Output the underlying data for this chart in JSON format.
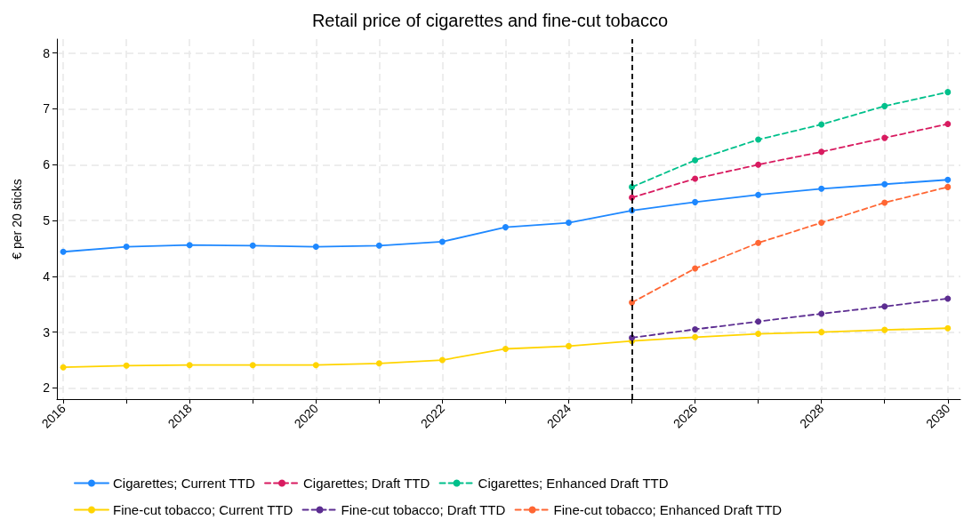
{
  "chart_data": {
    "type": "line",
    "title": "Retail price of cigarettes and fine-cut tobacco",
    "ylabel": "€ per 20 sticks",
    "x": [
      2016,
      2017,
      2018,
      2019,
      2020,
      2021,
      2022,
      2023,
      2024,
      2025,
      2026,
      2027,
      2028,
      2029,
      2030
    ],
    "series": [
      {
        "name": "Cigarettes; Current TTD",
        "color": "#1e88ff",
        "line_style": "solid",
        "values": [
          4.44,
          4.53,
          4.56,
          4.55,
          4.53,
          4.55,
          4.62,
          4.88,
          4.96,
          5.18,
          5.33,
          5.46,
          5.57,
          5.65,
          5.73
        ]
      },
      {
        "name": "Cigarettes; Draft TTD",
        "color": "#d81b60",
        "line_style": "dashed",
        "x": [
          2025,
          2026,
          2027,
          2028,
          2029,
          2030
        ],
        "values": [
          5.41,
          5.75,
          6.0,
          6.23,
          6.48,
          6.73
        ]
      },
      {
        "name": "Cigarettes; Enhanced Draft TTD",
        "color": "#00c08b",
        "line_style": "dashed",
        "x": [
          2025,
          2026,
          2027,
          2028,
          2029,
          2030
        ],
        "values": [
          5.6,
          6.08,
          6.45,
          6.72,
          7.05,
          7.3
        ]
      },
      {
        "name": "Fine-cut tobacco; Current TTD",
        "color": "#ffd400",
        "line_style": "solid",
        "values": [
          2.37,
          2.4,
          2.41,
          2.41,
          2.41,
          2.44,
          2.5,
          2.7,
          2.75,
          2.84,
          2.91,
          2.97,
          3.0,
          3.04,
          3.07
        ]
      },
      {
        "name": "Fine-cut tobacco; Draft TTD",
        "color": "#5c2d91",
        "line_style": "dashed",
        "x": [
          2025,
          2026,
          2027,
          2028,
          2029,
          2030
        ],
        "values": [
          2.9,
          3.05,
          3.19,
          3.33,
          3.46,
          3.6
        ]
      },
      {
        "name": "Fine-cut tobacco; Enhanced Draft TTD",
        "color": "#ff6633",
        "line_style": "dashed",
        "x": [
          2025,
          2026,
          2027,
          2028,
          2029,
          2030
        ],
        "values": [
          3.53,
          4.14,
          4.6,
          4.96,
          5.32,
          5.6
        ]
      }
    ],
    "xlim": [
      2015.9,
      2030.2
    ],
    "xticks": [
      2016,
      {
        "value": 2017,
        "label": null
      },
      2018,
      {
        "value": 2019,
        "label": null
      },
      2020,
      {
        "value": 2021,
        "label": null
      },
      2022,
      {
        "value": 2023,
        "label": null
      },
      2024,
      {
        "value": 2025,
        "label": null
      },
      2026,
      {
        "value": 2027,
        "label": null
      },
      2028,
      {
        "value": 2029,
        "label": null
      },
      2030
    ],
    "ylim": [
      1.8,
      8.25
    ],
    "yticks": [
      2,
      3,
      4,
      5,
      6,
      7,
      8
    ],
    "ref_lines": [
      {
        "axis": "x",
        "value": 2025,
        "color": "#000000",
        "line_style": "dashed"
      }
    ],
    "grid": true,
    "legend": "bottom",
    "marker": "circle"
  }
}
